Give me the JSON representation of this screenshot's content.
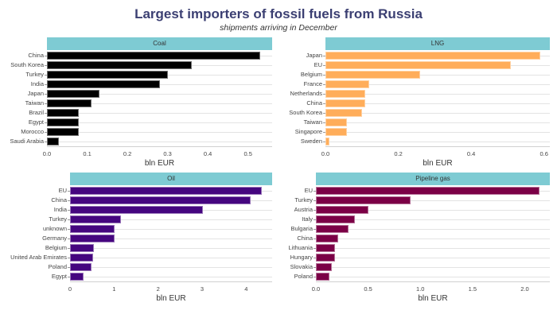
{
  "header": {
    "title": "Largest importers of fossil fuels from Russia",
    "subtitle": "shipments arriving in December"
  },
  "chart_data": [
    {
      "type": "bar",
      "orientation": "horizontal",
      "title": "Coal",
      "color": "#000000",
      "xlabel": "bln EUR",
      "ylabel": "",
      "xlim": [
        0,
        0.56
      ],
      "xticks": [
        "0.0",
        "0.1",
        "0.2",
        "0.3",
        "0.4",
        "0.5"
      ],
      "xtick_values": [
        0,
        0.1,
        0.2,
        0.3,
        0.4,
        0.5
      ],
      "categories": [
        "China",
        "South Korea",
        "Turkey",
        "India",
        "Japan",
        "Taiwan",
        "Brazil",
        "Egypt",
        "Morocco",
        "Saudi Arabia"
      ],
      "values": [
        0.53,
        0.36,
        0.3,
        0.28,
        0.13,
        0.11,
        0.08,
        0.08,
        0.08,
        0.03
      ]
    },
    {
      "type": "bar",
      "orientation": "horizontal",
      "title": "LNG",
      "color": "#ffad5a",
      "xlabel": "bln EUR",
      "ylabel": "",
      "xlim": [
        0,
        0.616
      ],
      "xticks": [
        "0.0",
        "0.2",
        "0.4",
        "0.6"
      ],
      "xtick_values": [
        0,
        0.2,
        0.4,
        0.6
      ],
      "categories": [
        "Japan",
        "EU",
        "Belgium",
        "France",
        "Netherlands",
        "China",
        "South Korea",
        "Taiwan",
        "Singapore",
        "Sweden"
      ],
      "values": [
        0.59,
        0.51,
        0.26,
        0.12,
        0.11,
        0.11,
        0.1,
        0.06,
        0.06,
        0.01
      ]
    },
    {
      "type": "bar",
      "orientation": "horizontal",
      "title": "Oil",
      "color": "#45067f",
      "xlabel": "bln EUR",
      "ylabel": "",
      "xlim": [
        0,
        4.59
      ],
      "xticks": [
        "0",
        "1",
        "2",
        "3",
        "4"
      ],
      "xtick_values": [
        0,
        1,
        2,
        3,
        4
      ],
      "categories": [
        "EU",
        "China",
        "India",
        "Turkey",
        "unknown",
        "Germany",
        "Belgium",
        "United Arab Emirates",
        "Poland",
        "Egypt"
      ],
      "values": [
        4.36,
        4.1,
        3.02,
        1.16,
        1.02,
        1.01,
        0.55,
        0.52,
        0.48,
        0.3
      ]
    },
    {
      "type": "bar",
      "orientation": "horizontal",
      "title": "Pipeline gas",
      "color": "#7b0046",
      "xlabel": "bln EUR",
      "ylabel": "",
      "xlim": [
        0,
        2.24
      ],
      "xticks": [
        "0.0",
        "0.5",
        "1.0",
        "1.5",
        "2.0"
      ],
      "xtick_values": [
        0,
        0.5,
        1.0,
        1.5,
        2.0
      ],
      "categories": [
        "EU",
        "Turkey",
        "Austria",
        "Italy",
        "Bulgaria",
        "China",
        "Lithuania",
        "Hungary",
        "Slovakia",
        "Poland"
      ],
      "values": [
        2.14,
        0.91,
        0.5,
        0.37,
        0.31,
        0.21,
        0.18,
        0.18,
        0.15,
        0.13
      ]
    }
  ],
  "style": {
    "strip_color": "#7ecbd3",
    "title_color": "#3b3f72"
  }
}
